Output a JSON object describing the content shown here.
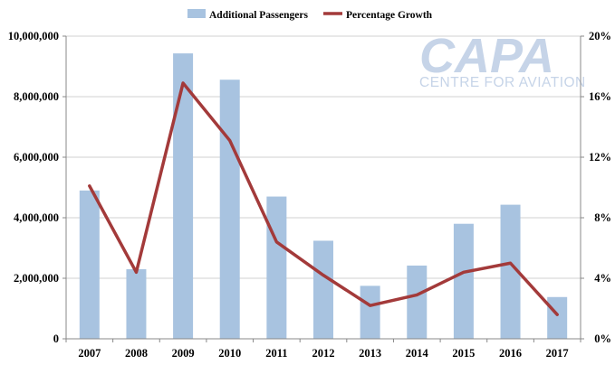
{
  "legend": {
    "bar_label": "Additional Passengers",
    "line_label": "Percentage Growth"
  },
  "logo": {
    "main": "CAPA",
    "sub": "CENTRE FOR AVIATION"
  },
  "colors": {
    "bar": "#a8c3e0",
    "line": "#a33a3a",
    "grid": "#d0d0d0",
    "axis": "#888888"
  },
  "chart_data": {
    "type": "bar+line",
    "categories": [
      "2007",
      "2008",
      "2009",
      "2010",
      "2011",
      "2012",
      "2013",
      "2014",
      "2015",
      "2016",
      "2017"
    ],
    "series": [
      {
        "name": "Additional Passengers",
        "type": "bar",
        "axis": "left",
        "values": [
          4900000,
          2300000,
          9430000,
          8560000,
          4700000,
          3240000,
          1750000,
          2420000,
          3800000,
          4430000,
          1380000
        ]
      },
      {
        "name": "Percentage Growth",
        "type": "line",
        "axis": "right",
        "values": [
          10.1,
          4.4,
          16.9,
          13.1,
          6.4,
          4.2,
          2.2,
          2.9,
          4.4,
          5.0,
          1.6
        ]
      }
    ],
    "y_left": {
      "min": 0,
      "max": 10000000,
      "ticks": [
        0,
        2000000,
        4000000,
        6000000,
        8000000,
        10000000
      ],
      "tick_labels": [
        "0",
        "2,000,000",
        "4,000,000",
        "6,000,000",
        "8,000,000",
        "10,000,000"
      ]
    },
    "y_right": {
      "min": 0,
      "max": 20,
      "ticks": [
        0,
        4,
        8,
        12,
        16,
        20
      ],
      "tick_labels": [
        "0%",
        "4%",
        "8%",
        "12%",
        "16%",
        "20%"
      ]
    },
    "grid": true,
    "legend_position": "top-center"
  }
}
